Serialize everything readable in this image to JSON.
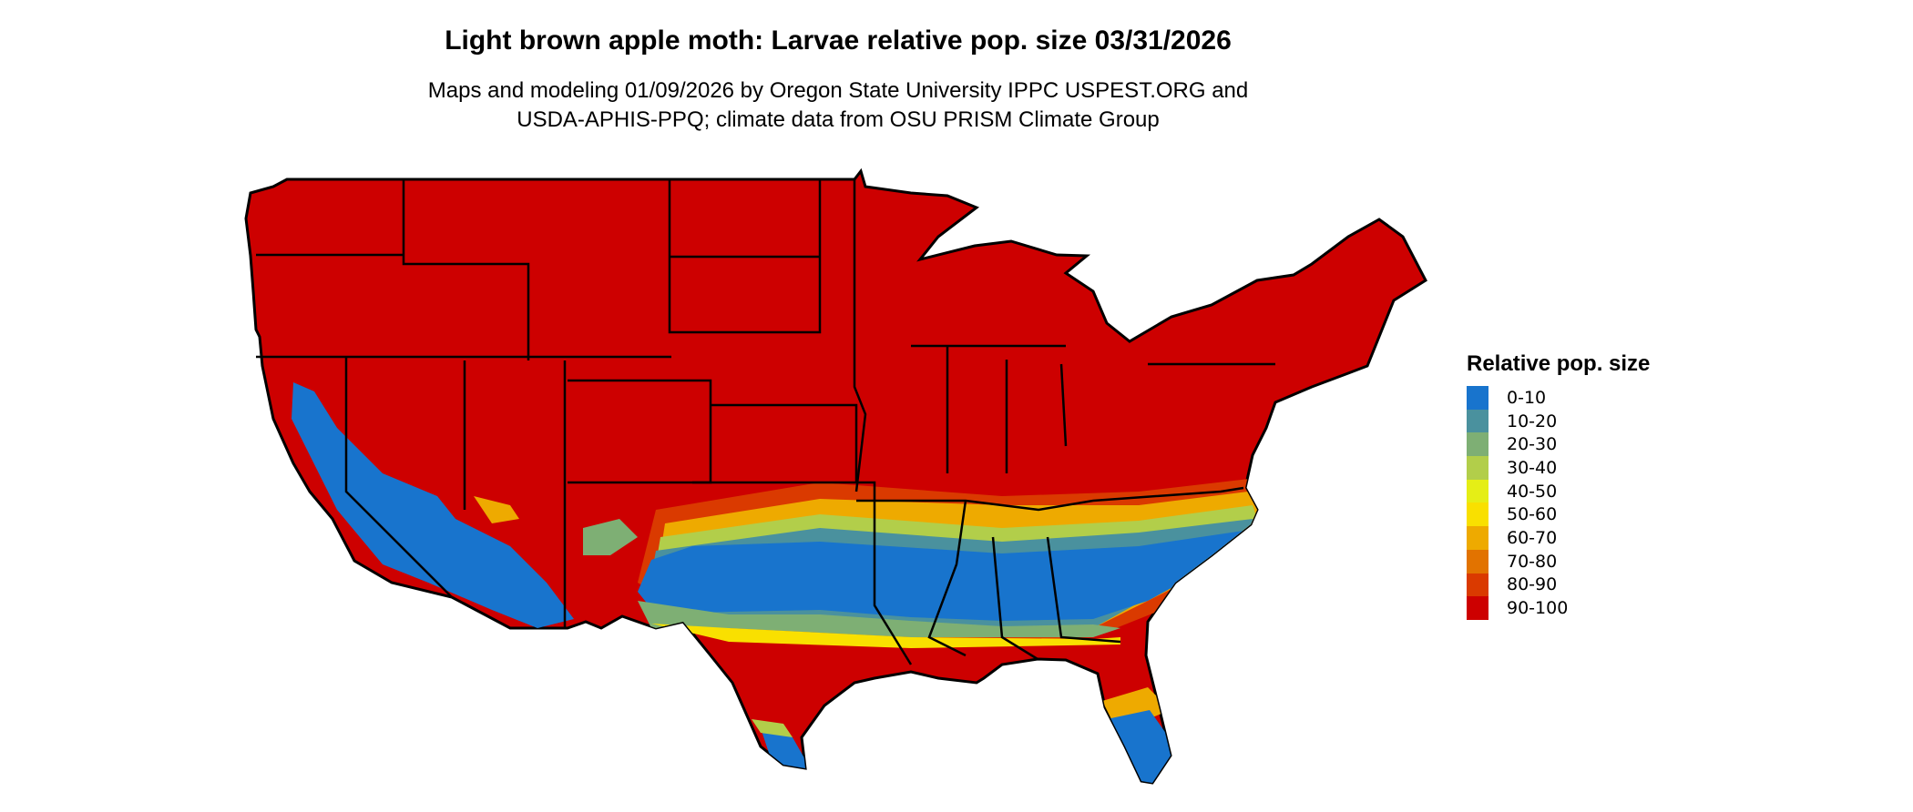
{
  "title": "Light brown apple moth: Larvae relative pop. size 03/31/2026",
  "subtitle_lines": [
    "Maps and modeling 01/09/2026 by Oregon State University IPPC USPEST.ORG and",
    "USDA-APHIS-PPQ; climate data from OSU PRISM Climate Group"
  ],
  "legend": {
    "title": "Relative pop. size",
    "items": [
      {
        "label": "0-10",
        "color": "#1874CD"
      },
      {
        "label": "10-20",
        "color": "#4A919E"
      },
      {
        "label": "20-30",
        "color": "#7EAF74"
      },
      {
        "label": "30-40",
        "color": "#B2CE4A"
      },
      {
        "label": "40-50",
        "color": "#E5EE16"
      },
      {
        "label": "50-60",
        "color": "#F9E000"
      },
      {
        "label": "60-70",
        "color": "#EEAA00"
      },
      {
        "label": "70-80",
        "color": "#E27300"
      },
      {
        "label": "80-90",
        "color": "#DA3A00"
      },
      {
        "label": "90-100",
        "color": "#CD0000"
      }
    ]
  },
  "map": {
    "region": "Contiguous United States",
    "dominant_class": "90-100",
    "low_classes_regions": [
      "Southern California / Arizona deserts",
      "Southern Plains to Carolinas band",
      "Central Florida",
      "South Texas tip"
    ]
  }
}
